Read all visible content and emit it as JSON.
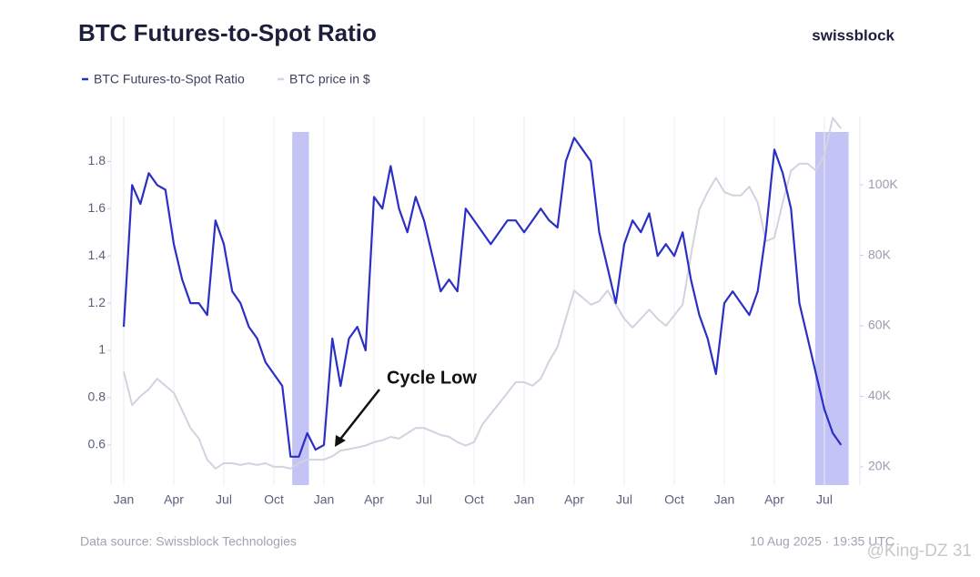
{
  "chart_data": {
    "type": "line",
    "title": "BTC Futures-to-Spot Ratio",
    "brand": "swissblock",
    "source": "Data source: Swissblock Technologies",
    "timestamp": "10 Aug 2025 · 19:35 UTC",
    "watermark": "@King-DZ 31",
    "annotation": "Cycle Low",
    "categories": [
      "Jan",
      null,
      null,
      null,
      null,
      null,
      "Apr",
      null,
      null,
      null,
      null,
      null,
      "Jul",
      null,
      null,
      null,
      null,
      null,
      "Oct",
      null,
      null,
      null,
      null,
      null,
      "Jan",
      null,
      null,
      null,
      null,
      null,
      "Apr",
      null,
      null,
      null,
      null,
      null,
      "Jul",
      null,
      null,
      null,
      null,
      null,
      "Oct",
      null,
      null,
      null,
      null,
      null,
      "Jan",
      null,
      null,
      null,
      null,
      null,
      "Apr",
      null,
      null,
      null,
      null,
      null,
      "Jul",
      null,
      null,
      null,
      null,
      null,
      "Oct",
      null,
      null,
      null,
      null,
      null,
      "Jan",
      null,
      null,
      null,
      null,
      null,
      "Apr",
      null,
      null,
      null,
      null,
      null,
      "Jul",
      null,
      null
    ],
    "series": [
      {
        "name": "BTC Futures-to-Spot Ratio",
        "color": "#2b2fc4",
        "axis": "y",
        "values": [
          1.1,
          1.7,
          1.62,
          1.75,
          1.7,
          1.68,
          1.45,
          1.3,
          1.2,
          1.2,
          1.15,
          1.55,
          1.45,
          1.25,
          1.2,
          1.1,
          1.05,
          0.95,
          0.9,
          0.85,
          0.55,
          0.55,
          0.65,
          0.58,
          0.6,
          1.05,
          0.85,
          1.05,
          1.1,
          1.0,
          1.65,
          1.6,
          1.78,
          1.6,
          1.5,
          1.65,
          1.55,
          1.4,
          1.25,
          1.3,
          1.25,
          1.6,
          1.55,
          1.5,
          1.45,
          1.5,
          1.55,
          1.55,
          1.5,
          1.55,
          1.6,
          1.55,
          1.52,
          1.8,
          1.9,
          1.85,
          1.8,
          1.5,
          1.35,
          1.2,
          1.45,
          1.55,
          1.5,
          1.58,
          1.4,
          1.45,
          1.4,
          1.5,
          1.3,
          1.15,
          1.05,
          0.9,
          1.2,
          1.25,
          1.2,
          1.15,
          1.25,
          1.5,
          1.85,
          1.75,
          1.6,
          1.2,
          1.05,
          0.9,
          0.75,
          0.65,
          0.6
        ]
      },
      {
        "name": "BTC price in $",
        "color": "#d2d3de",
        "axis": "y2",
        "values": [
          47000,
          37500,
          40000,
          42000,
          45000,
          43000,
          41000,
          36000,
          31000,
          28000,
          22000,
          19500,
          21000,
          21000,
          20500,
          21000,
          20500,
          21000,
          20000,
          20000,
          19500,
          21000,
          22000,
          22000,
          22000,
          23000,
          24600,
          25000,
          25500,
          26000,
          27000,
          27500,
          28500,
          28000,
          29500,
          31000,
          31000,
          30000,
          29000,
          28500,
          27000,
          26000,
          27000,
          32000,
          35000,
          38000,
          41000,
          44000,
          44000,
          43000,
          45000,
          50000,
          54000,
          62000,
          70000,
          68000,
          66000,
          67000,
          70000,
          66000,
          62000,
          59500,
          62000,
          64600,
          62000,
          60000,
          63000,
          66000,
          80000,
          93000,
          98000,
          102000,
          98000,
          97000,
          97000,
          99500,
          95000,
          84000,
          85000,
          95000,
          104000,
          106000,
          106000,
          104000,
          108500,
          119000,
          116000
        ]
      }
    ],
    "highlights": [
      {
        "from": 20.2,
        "to": 22.2
      },
      {
        "from": 82.9,
        "to": 86.9
      }
    ],
    "highlight_color": "#b9b9f4",
    "ylim": [
      0.43,
      1.99
    ],
    "yticks": [
      0.6,
      0.8,
      1,
      1.2,
      1.4,
      1.6,
      1.8
    ],
    "y2lim": [
      14800,
      119400
    ],
    "y2ticks": [
      {
        "value": 20000,
        "label": "20K"
      },
      {
        "value": 40000,
        "label": "40K"
      },
      {
        "value": 60000,
        "label": "60K"
      },
      {
        "value": 80000,
        "label": "80K"
      },
      {
        "value": 100000,
        "label": "100K"
      }
    ],
    "grid": "x"
  }
}
